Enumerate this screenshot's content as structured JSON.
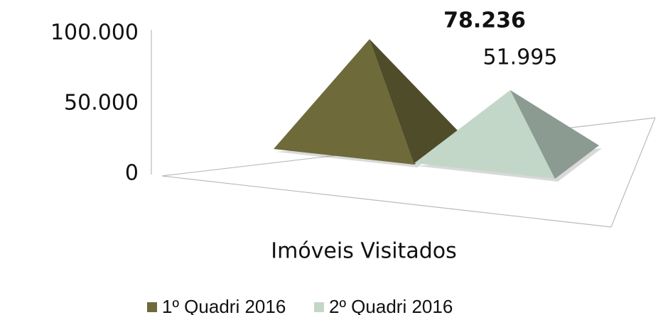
{
  "chart_data": {
    "type": "pyramid",
    "categories": [
      "Imóveis Visitados"
    ],
    "series": [
      {
        "name": "1º Quadri 2016",
        "color": "#6e6a3a",
        "values": [
          78236
        ],
        "value_labels": [
          "78.236"
        ]
      },
      {
        "name": "2º Quadri 2016",
        "color": "#c3d7c9",
        "values": [
          51995
        ],
        "value_labels": [
          "51.995"
        ]
      }
    ],
    "ylim": [
      0,
      100000
    ],
    "yticks": [
      0,
      {
        "value": 50000,
        "label": "50.000"
      },
      {
        "value": 100000,
        "label": "100.000"
      }
    ]
  }
}
